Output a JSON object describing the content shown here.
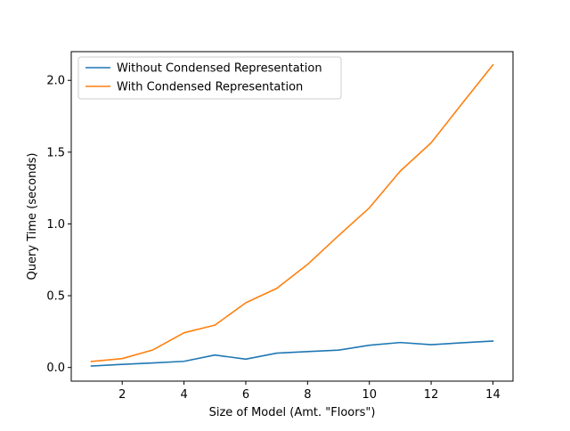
{
  "chart_data": {
    "type": "line",
    "title": "",
    "xlabel": "Size of Model (Amt. \"Floors\")",
    "ylabel": "Query Time (seconds)",
    "xlim": [
      0.35,
      14.65
    ],
    "ylim": [
      -0.095,
      2.2
    ],
    "xticks": [
      2,
      4,
      6,
      8,
      10,
      12,
      14
    ],
    "xtick_labels": [
      "2",
      "4",
      "6",
      "8",
      "10",
      "12",
      "14"
    ],
    "yticks": [
      0.0,
      0.5,
      1.0,
      1.5,
      2.0
    ],
    "ytick_labels": [
      "0.0",
      "0.5",
      "1.0",
      "1.5",
      "2.0"
    ],
    "grid": false,
    "legend_position": "upper-left",
    "x": [
      1,
      2,
      3,
      4,
      5,
      6,
      7,
      8,
      9,
      10,
      11,
      12,
      13,
      14
    ],
    "series": [
      {
        "name": "Without Condensed Representation",
        "color": "#1f77b4",
        "values": [
          0.01,
          0.022,
          0.032,
          0.043,
          0.087,
          0.058,
          0.1,
          0.111,
          0.121,
          0.155,
          0.174,
          0.159,
          0.172,
          0.184
        ]
      },
      {
        "name": "With Condensed Representation",
        "color": "#ff7f0e",
        "values": [
          0.042,
          0.062,
          0.123,
          0.242,
          0.295,
          0.451,
          0.551,
          0.718,
          0.918,
          1.112,
          1.368,
          1.565,
          1.838,
          2.108
        ]
      }
    ]
  }
}
